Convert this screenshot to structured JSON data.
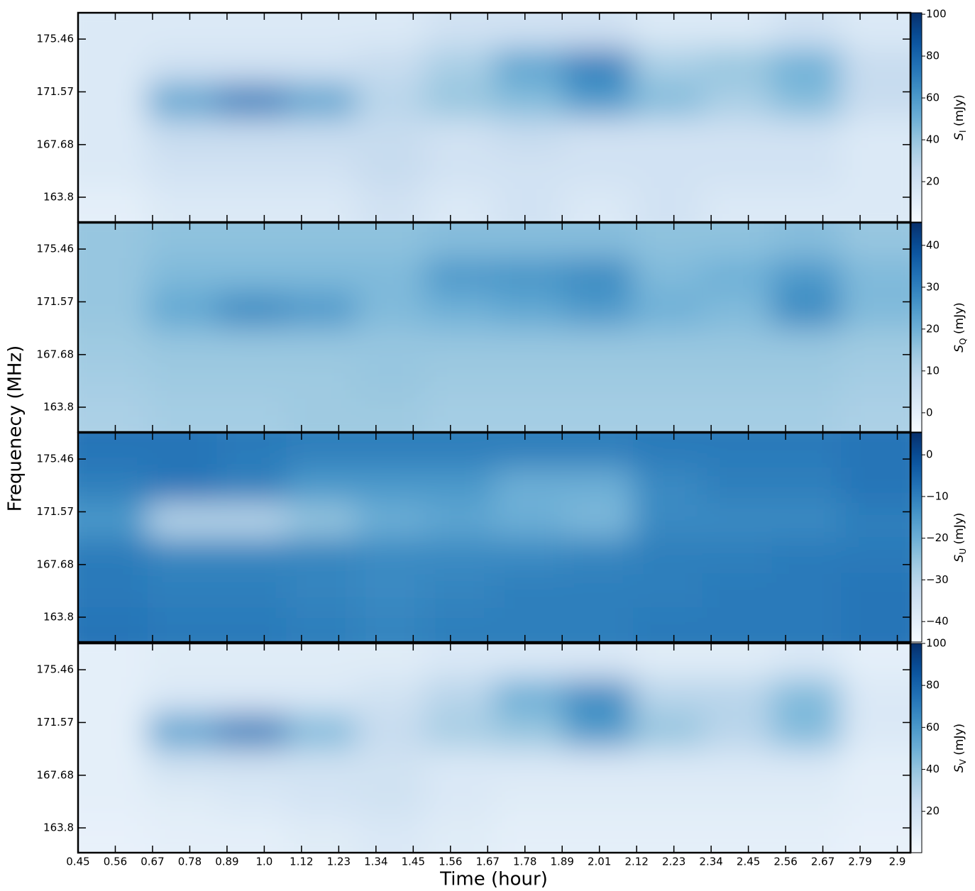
{
  "chart_data": {
    "type": "heatmap",
    "xlabel": "Time (hour)",
    "ylabel": "Frequenecy (MHz)",
    "x": [
      0.554,
      0.761,
      0.969,
      1.176,
      1.384,
      1.591,
      1.799,
      2.006,
      2.214,
      2.421,
      2.629,
      2.836
    ],
    "y": [
      163.26,
      165.83,
      168.4,
      170.97,
      173.54,
      176.11
    ],
    "xlim": [
      0.45,
      2.94
    ],
    "ylim": [
      161.97,
      177.4
    ],
    "xticks": [
      {
        "value": 0.45,
        "label": "0.45"
      },
      {
        "value": 0.5614,
        "label": "0.56"
      },
      {
        "value": 0.6728,
        "label": "0.67"
      },
      {
        "value": 0.7842,
        "label": "0.78"
      },
      {
        "value": 0.8956,
        "label": "0.89"
      },
      {
        "value": 1.007,
        "label": "1.0"
      },
      {
        "value": 1.1184,
        "label": "1.12"
      },
      {
        "value": 1.2298,
        "label": "1.23"
      },
      {
        "value": 1.3412,
        "label": "1.34"
      },
      {
        "value": 1.4526,
        "label": "1.45"
      },
      {
        "value": 1.564,
        "label": "1.56"
      },
      {
        "value": 1.6754,
        "label": "1.67"
      },
      {
        "value": 1.7868,
        "label": "1.78"
      },
      {
        "value": 1.8982,
        "label": "1.89"
      },
      {
        "value": 2.0096,
        "label": "2.01"
      },
      {
        "value": 2.121,
        "label": "2.12"
      },
      {
        "value": 2.2324,
        "label": "2.23"
      },
      {
        "value": 2.3438,
        "label": "2.34"
      },
      {
        "value": 2.4552,
        "label": "2.45"
      },
      {
        "value": 2.5666,
        "label": "2.56"
      },
      {
        "value": 2.678,
        "label": "2.67"
      },
      {
        "value": 2.7894,
        "label": "2.79"
      },
      {
        "value": 2.9008,
        "label": "2.9"
      }
    ],
    "yticks": [
      163.8,
      167.68,
      171.57,
      175.46
    ],
    "colors": [
      "#f7fbff",
      "#deebf7",
      "#c6dbef",
      "#9ecae1",
      "#6baed6",
      "#4292c6",
      "#2171b5",
      "#08519c",
      "#08306b"
    ],
    "panels": [
      {
        "colorbar_label": "S_I (mJy)",
        "clim": [
          0.7,
          100.7
        ],
        "cticks": [
          20,
          40,
          60,
          80,
          100
        ],
        "z": [
          [
            10,
            15,
            15,
            15,
            20,
            15,
            20,
            15,
            20,
            15,
            15,
            15
          ],
          [
            15,
            20,
            20,
            20,
            25,
            20,
            20,
            20,
            20,
            20,
            20,
            15
          ],
          [
            15,
            25,
            25,
            25,
            25,
            20,
            25,
            20,
            20,
            20,
            20,
            15
          ],
          [
            15,
            55,
            70,
            55,
            30,
            40,
            45,
            60,
            45,
            35,
            45,
            25
          ],
          [
            15,
            20,
            20,
            20,
            25,
            35,
            55,
            70,
            35,
            40,
            50,
            25
          ],
          [
            15,
            15,
            15,
            15,
            15,
            20,
            20,
            20,
            15,
            15,
            20,
            15
          ]
        ]
      },
      {
        "colorbar_label": "S_Q (mJy)",
        "clim": [
          -4.6,
          45.4
        ],
        "cticks": [
          0,
          10,
          20,
          30,
          40
        ],
        "z": [
          [
            12,
            13,
            13,
            14,
            14,
            13,
            13,
            13,
            13,
            13,
            13,
            12
          ],
          [
            13,
            14,
            14,
            14,
            15,
            14,
            14,
            14,
            14,
            14,
            14,
            13
          ],
          [
            14,
            15,
            15,
            15,
            15,
            15,
            15,
            15,
            15,
            15,
            15,
            14
          ],
          [
            15,
            22,
            28,
            25,
            18,
            20,
            22,
            25,
            20,
            18,
            28,
            18
          ],
          [
            15,
            18,
            18,
            18,
            18,
            25,
            26,
            28,
            18,
            20,
            25,
            18
          ],
          [
            15,
            16,
            16,
            16,
            16,
            17,
            17,
            17,
            16,
            16,
            17,
            15
          ]
        ]
      },
      {
        "colorbar_label": "S_U (mJy)",
        "clim": [
          -44.9,
          5.3
        ],
        "cticks": [
          {
            "value": -40,
            "label": "−40"
          },
          {
            "value": -30,
            "label": "−30"
          },
          {
            "value": -20,
            "label": "−20"
          },
          {
            "value": -10,
            "label": "−10"
          },
          0
        ],
        "z": [
          [
            -8,
            -9,
            -9,
            -10,
            -11,
            -10,
            -10,
            -10,
            -9,
            -9,
            -9,
            -8
          ],
          [
            -9,
            -10,
            -10,
            -11,
            -12,
            -11,
            -10,
            -10,
            -10,
            -9,
            -9,
            -8
          ],
          [
            -9,
            -11,
            -11,
            -11,
            -12,
            -12,
            -12,
            -11,
            -10,
            -10,
            -9,
            -9
          ],
          [
            -15,
            -30,
            -30,
            -25,
            -20,
            -18,
            -20,
            -22,
            -12,
            -12,
            -12,
            -10
          ],
          [
            -10,
            -8,
            -10,
            -15,
            -15,
            -15,
            -20,
            -20,
            -12,
            -10,
            -10,
            -8
          ],
          [
            -8,
            -8,
            -9,
            -10,
            -10,
            -10,
            -10,
            -10,
            -9,
            -9,
            -9,
            -8
          ]
        ]
      },
      {
        "colorbar_label": "S_V (mJy)",
        "clim": [
          0.3,
          100
        ],
        "cticks": [
          20,
          40,
          60,
          80,
          100
        ],
        "z": [
          [
            8,
            10,
            10,
            12,
            15,
            12,
            10,
            10,
            10,
            10,
            10,
            8
          ],
          [
            10,
            12,
            15,
            18,
            20,
            15,
            12,
            12,
            12,
            12,
            12,
            10
          ],
          [
            10,
            20,
            20,
            20,
            20,
            15,
            15,
            15,
            15,
            15,
            15,
            10
          ],
          [
            10,
            55,
            70,
            45,
            25,
            35,
            40,
            60,
            40,
            30,
            45,
            15
          ],
          [
            10,
            15,
            15,
            15,
            20,
            30,
            50,
            65,
            30,
            30,
            45,
            15
          ],
          [
            10,
            12,
            12,
            12,
            12,
            15,
            15,
            15,
            12,
            12,
            15,
            10
          ]
        ]
      }
    ]
  }
}
